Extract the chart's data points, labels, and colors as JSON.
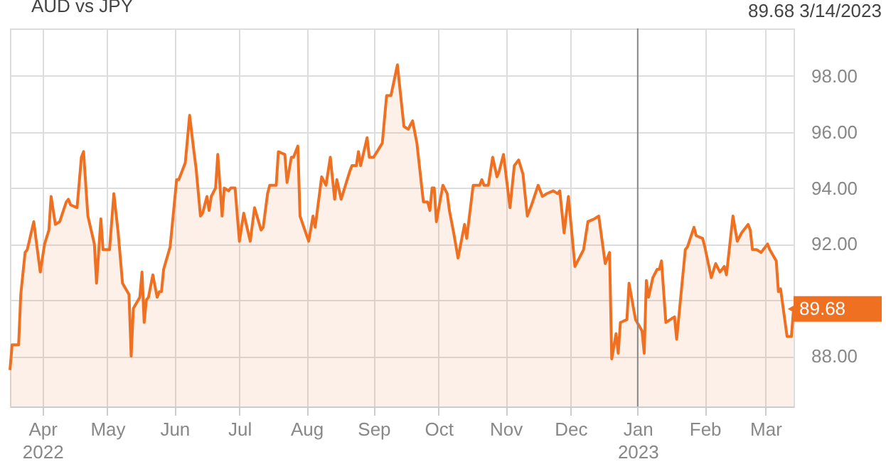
{
  "chart_data": {
    "type": "area",
    "legend": "top left",
    "grid": true,
    "marker": "none",
    "line_style": "solid",
    "xlim": [
      "2022-03-17",
      "2023-03-14"
    ],
    "ylim": [
      86.2,
      99.7
    ],
    "xticks": [
      {
        "value": "2022-04-01",
        "label": "Apr\n2022"
      },
      {
        "value": "2022-05-01",
        "label": "May"
      },
      {
        "value": "2022-06-01",
        "label": "Jun"
      },
      {
        "value": "2022-07-01",
        "label": "Jul"
      },
      {
        "value": "2022-08-01",
        "label": "Aug"
      },
      {
        "value": "2022-09-01",
        "label": "Sep"
      },
      {
        "value": "2022-10-01",
        "label": "Oct"
      },
      {
        "value": "2022-11-01",
        "label": "Nov"
      },
      {
        "value": "2022-12-01",
        "label": "Dec"
      },
      {
        "value": "2023-01-01",
        "label": "Jan\n2023"
      },
      {
        "value": "2023-02-01",
        "label": "Feb"
      },
      {
        "value": "2023-03-01",
        "label": "Mar"
      }
    ],
    "yticks": [
      {
        "value": 88,
        "label": "88.00"
      },
      {
        "value": 90,
        "label": null
      },
      {
        "value": 92,
        "label": "92.00"
      },
      {
        "value": 94,
        "label": "94.00"
      },
      {
        "value": 96,
        "label": "96.00"
      },
      {
        "value": 98,
        "label": "98.00"
      }
    ],
    "ref_lines": [
      {
        "axis": "x",
        "value": "2023-01-01",
        "color": "#888888"
      }
    ],
    "annotations": [
      "89.68  3/14/2023",
      {
        "text": "89.68",
        "x": "2023-03-14",
        "y": 89.68
      }
    ],
    "series": [
      {
        "name": "AUD vs JPY",
        "color": "#f07022",
        "x": [
          "2022-03-17",
          "2022-03-18",
          "2022-03-21",
          "2022-03-22",
          "2022-03-24",
          "2022-03-25",
          "2022-03-28",
          "2022-03-31",
          "2022-04-02",
          "2022-04-04",
          "2022-04-05",
          "2022-04-07",
          "2022-04-09",
          "2022-04-12",
          "2022-04-13",
          "2022-04-14",
          "2022-04-17",
          "2022-04-19",
          "2022-04-20",
          "2022-04-22",
          "2022-04-25",
          "2022-04-26",
          "2022-04-28",
          "2022-04-29",
          "2022-05-02",
          "2022-05-04",
          "2022-05-06",
          "2022-05-08",
          "2022-05-11",
          "2022-05-12",
          "2022-05-13",
          "2022-05-16",
          "2022-05-17",
          "2022-05-18",
          "2022-05-19",
          "2022-05-20",
          "2022-05-22",
          "2022-05-24",
          "2022-05-25",
          "2022-05-26",
          "2022-05-27",
          "2022-05-30",
          "2022-06-02",
          "2022-06-03",
          "2022-06-06",
          "2022-06-08",
          "2022-06-10",
          "2022-06-11",
          "2022-06-13",
          "2022-06-14",
          "2022-06-16",
          "2022-06-17",
          "2022-06-18",
          "2022-06-20",
          "2022-06-21",
          "2022-06-23",
          "2022-06-24",
          "2022-06-26",
          "2022-06-27",
          "2022-06-29",
          "2022-07-01",
          "2022-07-03",
          "2022-07-06",
          "2022-07-08",
          "2022-07-11",
          "2022-07-12",
          "2022-07-14",
          "2022-07-15",
          "2022-07-18",
          "2022-07-19",
          "2022-07-22",
          "2022-07-23",
          "2022-07-25",
          "2022-07-26",
          "2022-07-28",
          "2022-07-29",
          "2022-08-02",
          "2022-08-04",
          "2022-08-05",
          "2022-08-08",
          "2022-08-10",
          "2022-08-12",
          "2022-08-14",
          "2022-08-15",
          "2022-08-17",
          "2022-08-21",
          "2022-08-22",
          "2022-08-24",
          "2022-08-25",
          "2022-08-26",
          "2022-08-29",
          "2022-08-30",
          "2022-09-01",
          "2022-09-05",
          "2022-09-07",
          "2022-09-09",
          "2022-09-12",
          "2022-09-15",
          "2022-09-17",
          "2022-09-19",
          "2022-09-21",
          "2022-09-24",
          "2022-09-26",
          "2022-09-27",
          "2022-09-28",
          "2022-09-29",
          "2022-09-30",
          "2022-10-03",
          "2022-10-05",
          "2022-10-06",
          "2022-10-08",
          "2022-10-10",
          "2022-10-13",
          "2022-10-14",
          "2022-10-17",
          "2022-10-20",
          "2022-10-21",
          "2022-10-22",
          "2022-10-24",
          "2022-10-26",
          "2022-10-28",
          "2022-10-29",
          "2022-10-31",
          "2022-11-03",
          "2022-11-05",
          "2022-11-07",
          "2022-11-09",
          "2022-11-11",
          "2022-11-13",
          "2022-11-16",
          "2022-11-18",
          "2022-11-20",
          "2022-11-23",
          "2022-11-25",
          "2022-11-26",
          "2022-11-28",
          "2022-11-30",
          "2022-12-03",
          "2022-12-07",
          "2022-12-09",
          "2022-12-12",
          "2022-12-14",
          "2022-12-17",
          "2022-12-19",
          "2022-12-20",
          "2022-12-22",
          "2022-12-23",
          "2022-12-24",
          "2022-12-27",
          "2022-12-28",
          "2022-12-31",
          "2023-01-03",
          "2023-01-04",
          "2023-01-05",
          "2023-01-06",
          "2023-01-08",
          "2023-01-10",
          "2023-01-11",
          "2023-01-12",
          "2023-01-14",
          "2023-01-18",
          "2023-01-19",
          "2023-01-21",
          "2023-01-23",
          "2023-01-24",
          "2023-01-27",
          "2023-01-28",
          "2023-01-31",
          "2023-02-01",
          "2023-02-04",
          "2023-02-06",
          "2023-02-08",
          "2023-02-10",
          "2023-02-11",
          "2023-02-14",
          "2023-02-16",
          "2023-02-18",
          "2023-02-21",
          "2023-02-22",
          "2023-02-23",
          "2023-02-25",
          "2023-02-27",
          "2023-03-02",
          "2023-03-03",
          "2023-03-06",
          "2023-03-07",
          "2023-03-08",
          "2023-03-11",
          "2023-03-13",
          "2023-03-14"
        ],
        "values": [
          87.5,
          88.4,
          88.4,
          90.2,
          91.7,
          91.8,
          92.8,
          91.0,
          92.0,
          92.5,
          93.7,
          92.7,
          92.8,
          93.5,
          93.6,
          93.4,
          93.3,
          95.1,
          95.3,
          93.0,
          92.0,
          90.6,
          92.9,
          91.8,
          91.8,
          93.8,
          92.4,
          90.6,
          90.2,
          88.0,
          89.7,
          90.1,
          91.0,
          89.2,
          90.0,
          90.1,
          90.9,
          90.1,
          90.3,
          90.3,
          91.1,
          91.9,
          94.3,
          94.3,
          94.9,
          96.6,
          95.3,
          94.7,
          93.0,
          93.1,
          93.7,
          93.2,
          93.7,
          94.0,
          95.2,
          93.0,
          94.0,
          93.9,
          94.0,
          94.0,
          92.1,
          93.1,
          92.1,
          93.3,
          92.5,
          92.6,
          93.8,
          94.1,
          94.1,
          95.3,
          95.2,
          94.2,
          95.1,
          95.1,
          95.5,
          93.0,
          92.1,
          93.0,
          92.6,
          94.4,
          94.1,
          95.1,
          93.6,
          94.3,
          93.6,
          94.6,
          94.8,
          94.8,
          95.3,
          94.8,
          95.8,
          95.1,
          95.1,
          95.6,
          97.3,
          97.3,
          98.4,
          96.2,
          96.1,
          96.4,
          95.6,
          93.5,
          93.5,
          93.2,
          94.0,
          94.0,
          92.8,
          94.1,
          93.8,
          93.2,
          92.4,
          91.5,
          92.7,
          92.2,
          94.1,
          94.1,
          94.3,
          94.1,
          94.1,
          95.1,
          94.4,
          94.6,
          95.2,
          93.3,
          94.8,
          95.0,
          94.5,
          93.0,
          93.4,
          94.1,
          93.7,
          93.8,
          93.9,
          93.8,
          93.9,
          92.4,
          93.7,
          91.2,
          91.8,
          92.8,
          92.9,
          93.0,
          91.3,
          91.7,
          87.9,
          88.8,
          88.1,
          89.2,
          89.3,
          90.6,
          89.3,
          88.9,
          88.1,
          90.7,
          90.1,
          90.8,
          91.1,
          91.1,
          91.4,
          89.2,
          89.4,
          88.6,
          90.2,
          91.8,
          91.9,
          92.6,
          92.3,
          92.2,
          91.9,
          90.8,
          91.3,
          91.0,
          91.2,
          90.9,
          93.0,
          92.1,
          92.4,
          92.7,
          92.5,
          91.8,
          91.8,
          91.7,
          92.0,
          91.8,
          91.4,
          90.3,
          90.4,
          88.7,
          88.7,
          89.68
        ]
      }
    ]
  }
}
